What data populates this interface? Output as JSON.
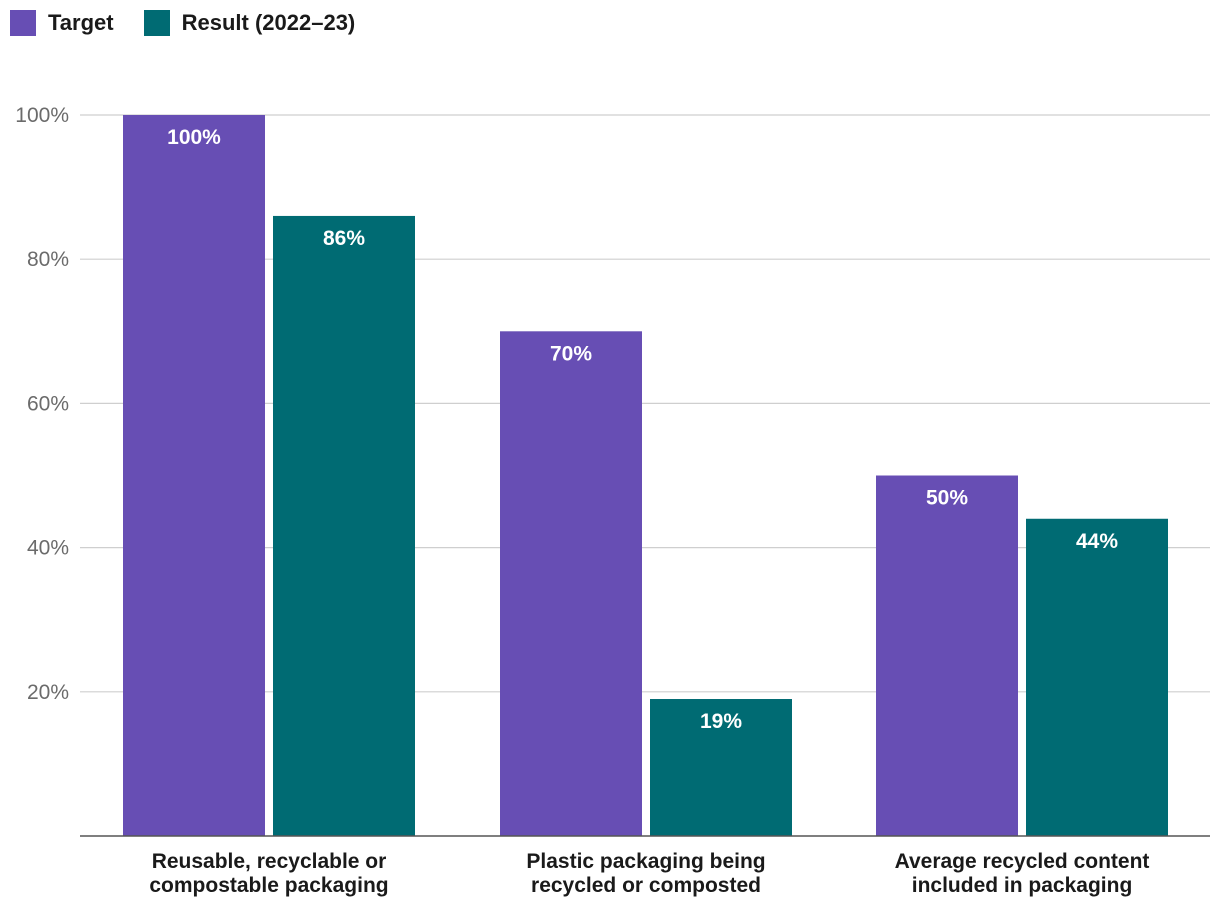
{
  "legend": [
    {
      "label": "Target",
      "color": "#674EB4"
    },
    {
      "label": "Result (2022–23)",
      "color": "#006B73"
    }
  ],
  "chart_data": {
    "type": "bar",
    "categories": [
      [
        "Reusable, recyclable or",
        "compostable packaging"
      ],
      [
        "Plastic packaging being",
        "recycled or composted"
      ],
      [
        "Average recycled content",
        "included in packaging"
      ]
    ],
    "series": [
      {
        "name": "Target",
        "color": "#674EB4",
        "values": [
          100,
          70,
          50
        ],
        "labels": [
          "100%",
          "70%",
          "50%"
        ]
      },
      {
        "name": "Result (2022–23)",
        "color": "#006B73",
        "values": [
          86,
          19,
          44
        ],
        "labels": [
          "86%",
          "19%",
          "44%"
        ]
      }
    ],
    "yticks": [
      {
        "value": 20,
        "label": "20%"
      },
      {
        "value": 40,
        "label": "40%"
      },
      {
        "value": 60,
        "label": "60%"
      },
      {
        "value": 80,
        "label": "80%"
      },
      {
        "value": 100,
        "label": "100%"
      }
    ],
    "ylim": [
      0,
      100
    ],
    "grid": true,
    "legend_position": "top-left"
  }
}
